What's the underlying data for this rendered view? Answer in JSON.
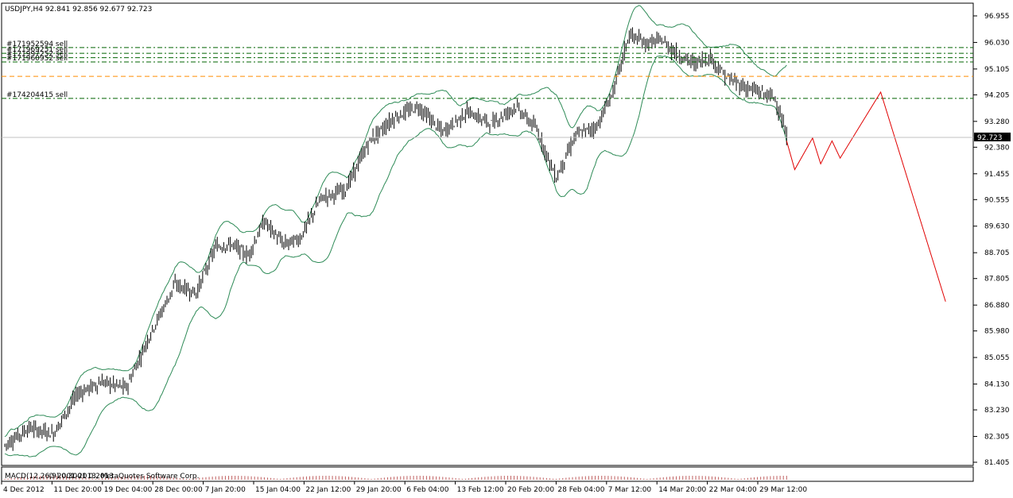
{
  "window": {
    "symbol_header": "USDJPY,H4  92.841 92.856 92.677 92.723",
    "indicator_header": "MACD(12,26,9) 0.3001 0.2013",
    "copyright": "© 2001-2013, MetaQuotes Software Corp.",
    "current_price_label": "92.723"
  },
  "colors": {
    "background": "#ffffff",
    "candles": "#000000",
    "bands": "#2e8b57",
    "sell_levels": "#006400",
    "orange_level": "#ff8c00",
    "forecast": "#e00000",
    "grid_border": "#000000"
  },
  "chart_data": {
    "type": "line",
    "title": "USDJPY,H4",
    "ylim": [
      81.0,
      97.5
    ],
    "price_ticks": [
      "96.955",
      "96.030",
      "95.105",
      "94.205",
      "93.280",
      "92.380",
      "91.455",
      "90.555",
      "89.630",
      "88.705",
      "87.805",
      "86.880",
      "85.980",
      "85.055",
      "84.130",
      "83.230",
      "82.305",
      "81.405"
    ],
    "time_ticks": [
      "4 Dec 2012",
      "11 Dec 20:00",
      "19 Dec 04:00",
      "28 Dec 00:00",
      "7 Jan 20:00",
      "15 Jan 04:00",
      "22 Jan 12:00",
      "29 Jan 20:00",
      "6 Feb 04:00",
      "13 Feb 12:00",
      "20 Feb 20:00",
      "28 Feb 04:00",
      "7 Mar 12:00",
      "14 Mar 20:00",
      "22 Mar 04:00",
      "29 Mar 12:00"
    ],
    "price_series": [
      {
        "bar": 0,
        "v": 82.0
      },
      {
        "bar": 15,
        "v": 82.6
      },
      {
        "bar": 30,
        "v": 82.4
      },
      {
        "bar": 45,
        "v": 83.8
      },
      {
        "bar": 60,
        "v": 84.2
      },
      {
        "bar": 75,
        "v": 84.0
      },
      {
        "bar": 90,
        "v": 85.9
      },
      {
        "bar": 105,
        "v": 87.6
      },
      {
        "bar": 118,
        "v": 87.3
      },
      {
        "bar": 130,
        "v": 88.9
      },
      {
        "bar": 140,
        "v": 89.0
      },
      {
        "bar": 150,
        "v": 88.6
      },
      {
        "bar": 160,
        "v": 89.8
      },
      {
        "bar": 172,
        "v": 89.0
      },
      {
        "bar": 182,
        "v": 89.2
      },
      {
        "bar": 195,
        "v": 90.6
      },
      {
        "bar": 210,
        "v": 90.9
      },
      {
        "bar": 225,
        "v": 92.6
      },
      {
        "bar": 240,
        "v": 93.4
      },
      {
        "bar": 255,
        "v": 93.8
      },
      {
        "bar": 270,
        "v": 92.9
      },
      {
        "bar": 285,
        "v": 93.6
      },
      {
        "bar": 300,
        "v": 93.2
      },
      {
        "bar": 315,
        "v": 93.8
      },
      {
        "bar": 328,
        "v": 93.0
      },
      {
        "bar": 340,
        "v": 91.3
      },
      {
        "bar": 352,
        "v": 92.8
      },
      {
        "bar": 365,
        "v": 93.1
      },
      {
        "bar": 375,
        "v": 94.3
      },
      {
        "bar": 385,
        "v": 96.3
      },
      {
        "bar": 395,
        "v": 96.0
      },
      {
        "bar": 405,
        "v": 96.1
      },
      {
        "bar": 415,
        "v": 95.6
      },
      {
        "bar": 425,
        "v": 95.3
      },
      {
        "bar": 435,
        "v": 95.5
      },
      {
        "bar": 445,
        "v": 94.8
      },
      {
        "bar": 455,
        "v": 94.5
      },
      {
        "bar": 465,
        "v": 94.3
      },
      {
        "bar": 475,
        "v": 94.1
      },
      {
        "bar": 482,
        "v": 92.72
      }
    ],
    "sell_levels": [
      {
        "label": "#171952594 sell",
        "price": 95.85
      },
      {
        "label": "#171969251 sell",
        "price": 95.65
      },
      {
        "label": "#171997252 sell",
        "price": 95.5
      },
      {
        "label": "#171960952 sell",
        "price": 95.35
      },
      {
        "label": "#174204415 sell",
        "price": 94.08
      }
    ],
    "orange_level": 94.85,
    "forecast": [
      {
        "bar": 482,
        "v": 92.6
      },
      {
        "bar": 487,
        "v": 91.6
      },
      {
        "bar": 498,
        "v": 92.7
      },
      {
        "bar": 503,
        "v": 91.8
      },
      {
        "bar": 510,
        "v": 92.6
      },
      {
        "bar": 515,
        "v": 92.0
      },
      {
        "bar": 540,
        "v": 94.3
      },
      {
        "bar": 580,
        "v": 87.0
      }
    ]
  }
}
